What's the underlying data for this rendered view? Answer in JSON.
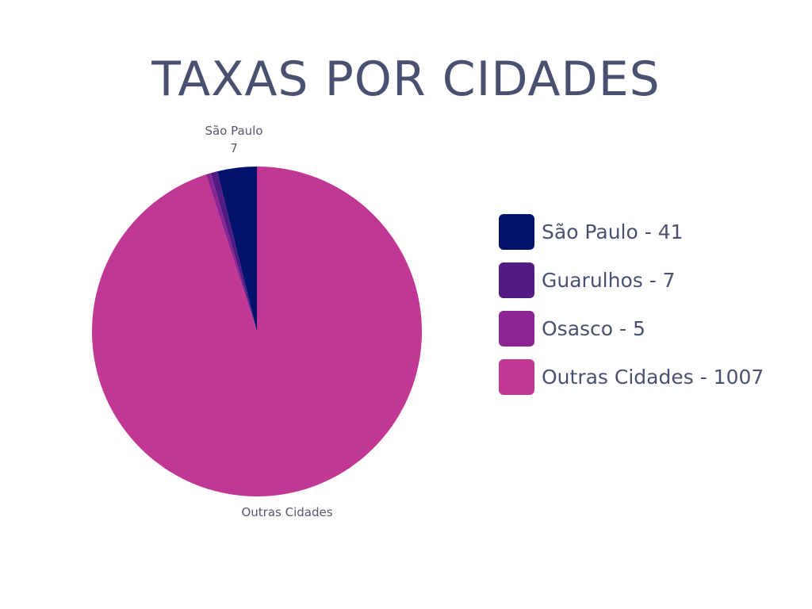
{
  "chart_data": {
    "type": "pie",
    "title": "TAXAS POR CIDADES",
    "slices": [
      {
        "label": "São Paulo",
        "value": 41,
        "color": "#01126b",
        "legend": "São Paulo - 41"
      },
      {
        "label": "Guarulhos",
        "value": 7,
        "color": "#521a83",
        "legend": "Guarulhos - 7"
      },
      {
        "label": "Osasco",
        "value": 5,
        "color": "#8a2593",
        "legend": "Osasco - 5"
      },
      {
        "label": "Outras Cidades",
        "value": 1007,
        "color": "#c13794",
        "legend": "Outras Cidades - 1007"
      }
    ],
    "slice_labels": {
      "top_name": "São Paulo",
      "top_value": "7",
      "bottom_name": "Outras Cidades"
    },
    "legend_position": "right"
  }
}
